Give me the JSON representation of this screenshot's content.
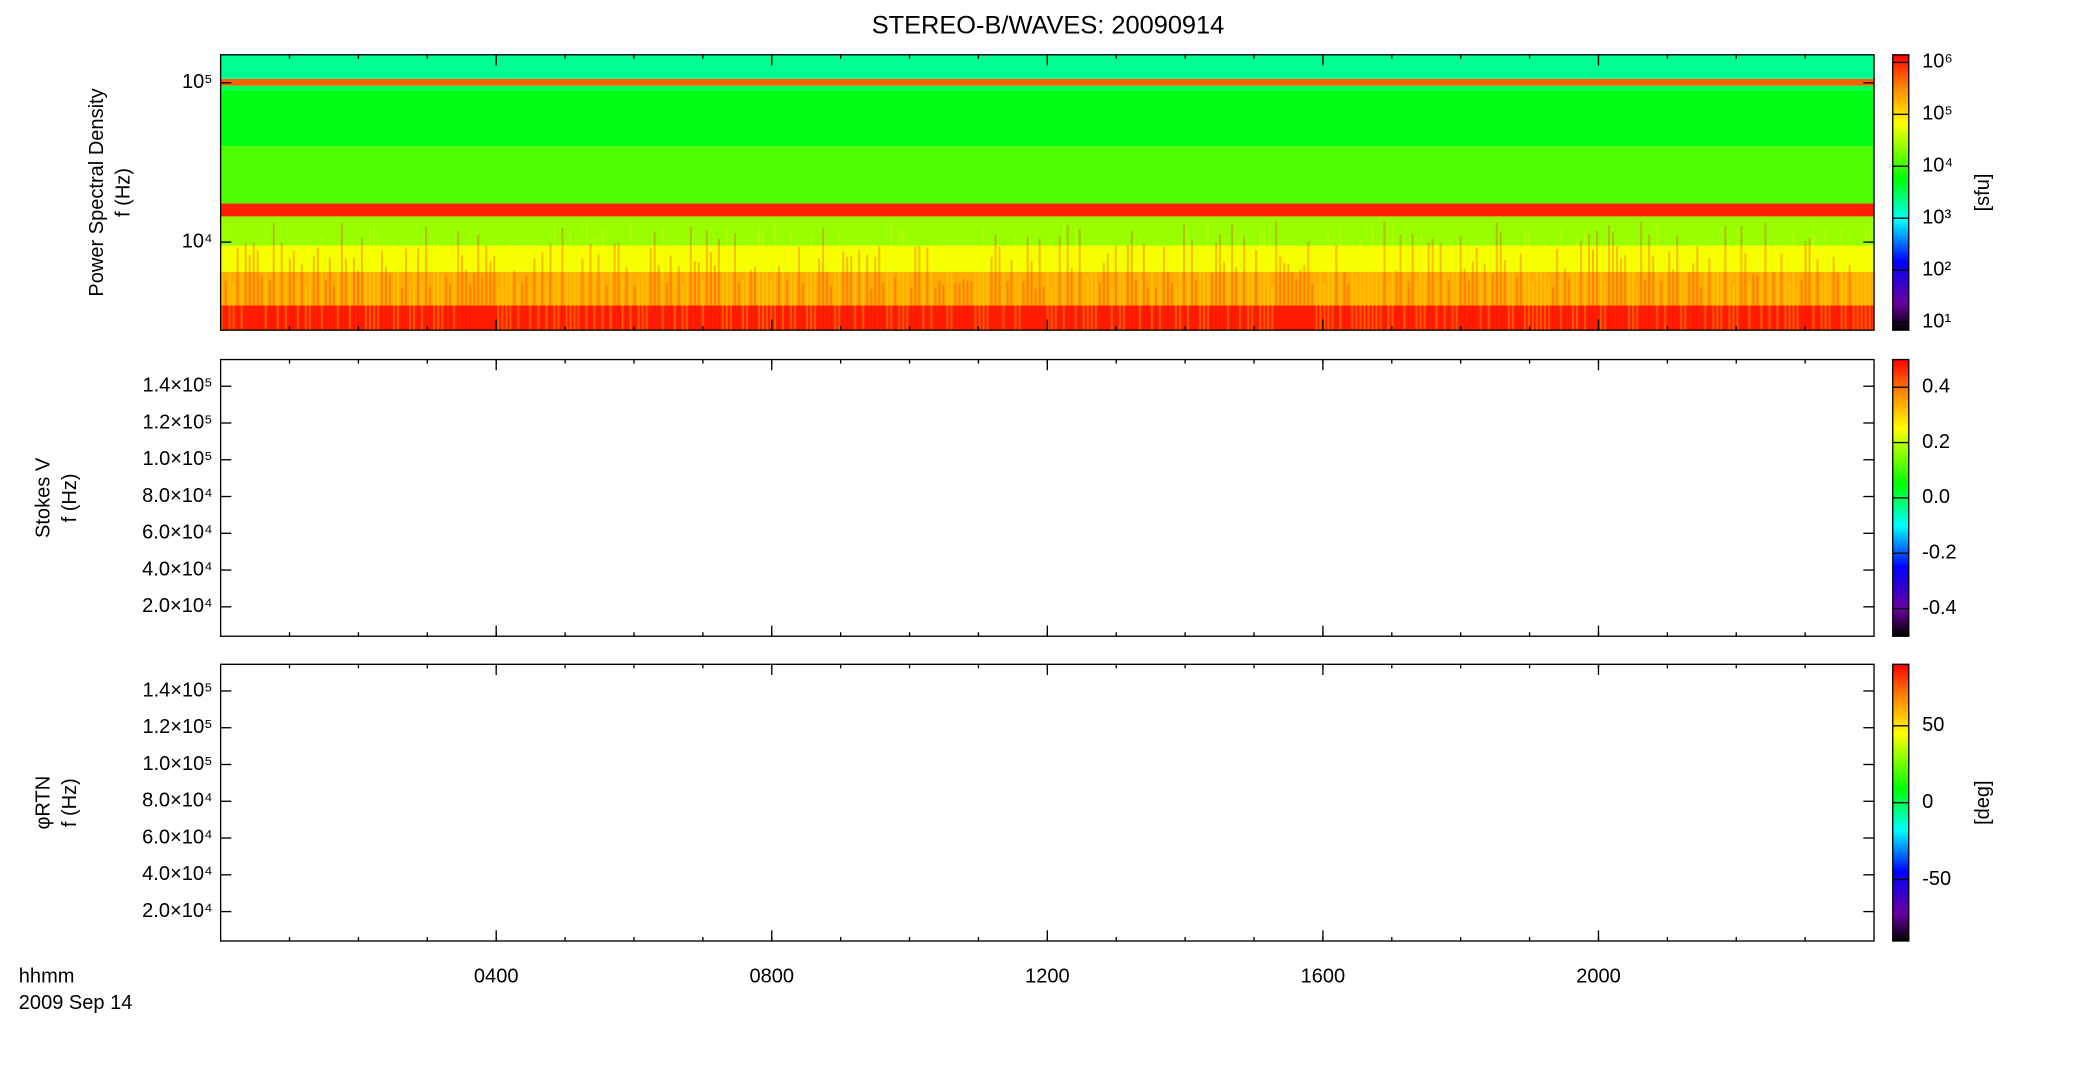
{
  "chart_data": [
    {
      "type": "spectrogram",
      "title": "STEREO-B/WAVES: 20090914",
      "ylabel": [
        "Power Spectral Density",
        "f (Hz)"
      ],
      "ylog": true,
      "ylim": [
        2800,
        150000
      ],
      "yticks": [
        {
          "value": 10000,
          "label": "10⁴"
        },
        {
          "value": 100000,
          "label": "10⁵"
        }
      ],
      "zlog": true,
      "zlim": [
        7,
        1400000
      ],
      "zlabel": "[sfu]",
      "zticks": [
        {
          "value": 10,
          "label": "10¹"
        },
        {
          "value": 100,
          "label": "10²"
        },
        {
          "value": 1000,
          "label": "10³"
        },
        {
          "value": 10000,
          "label": "10⁴"
        },
        {
          "value": 100000,
          "label": "10⁵"
        },
        {
          "value": 1000000,
          "label": "10⁶"
        }
      ],
      "colormap": "rainbow",
      "bands": [
        {
          "f": [
            2800,
            4000
          ],
          "value": 1000000
        },
        {
          "f": [
            4000,
            6500
          ],
          "value": 200000
        },
        {
          "f": [
            6500,
            9500
          ],
          "value": 60000
        },
        {
          "f": [
            9500,
            14500
          ],
          "value": 25000
        },
        {
          "f": [
            14500,
            17500
          ],
          "value": 1000000
        },
        {
          "f": [
            17500,
            40000
          ],
          "value": 12000
        },
        {
          "f": [
            40000,
            90000
          ],
          "value": 5000
        },
        {
          "f": [
            90000,
            96000
          ],
          "value": 3000
        },
        {
          "f": [
            96000,
            106000
          ],
          "value": 500000
        },
        {
          "f": [
            106000,
            150000
          ],
          "value": 2000
        }
      ]
    },
    {
      "type": "spectrogram",
      "ylabel": [
        "Stokes V",
        "f (Hz)"
      ],
      "ylog": false,
      "ylim": [
        4000,
        154500
      ],
      "yticks": [
        {
          "value": 20000,
          "label": "2.0×10⁴"
        },
        {
          "value": 40000,
          "label": "4.0×10⁴"
        },
        {
          "value": 60000,
          "label": "6.0×10⁴"
        },
        {
          "value": 80000,
          "label": "8.0×10⁴"
        },
        {
          "value": 100000,
          "label": "1.0×10⁵"
        },
        {
          "value": 120000,
          "label": "1.2×10⁵"
        },
        {
          "value": 140000,
          "label": "1.4×10⁵"
        }
      ],
      "zlog": false,
      "zlim": [
        -0.5,
        0.5
      ],
      "zticks": [
        -0.4,
        -0.2,
        {
          "value": 0,
          "label": "0.0"
        },
        0.2,
        0.4
      ],
      "colormap": "rainbow"
    },
    {
      "type": "spectrogram",
      "ylabel": [
        "φRTN",
        "f (Hz)"
      ],
      "ylog": false,
      "ylim": [
        4000,
        154500
      ],
      "yticks": [
        {
          "value": 20000,
          "label": "2.0×10⁴"
        },
        {
          "value": 40000,
          "label": "4.0×10⁴"
        },
        {
          "value": 60000,
          "label": "6.0×10⁴"
        },
        {
          "value": 80000,
          "label": "8.0×10⁴"
        },
        {
          "value": 100000,
          "label": "1.0×10⁵"
        },
        {
          "value": 120000,
          "label": "1.2×10⁵"
        },
        {
          "value": 140000,
          "label": "1.4×10⁵"
        }
      ],
      "zlog": false,
      "zlim": [
        -90,
        90
      ],
      "zlabel": "[deg]",
      "zticks": [
        -50,
        0,
        50
      ],
      "colormap": "rainbow",
      "xlabel": "hhmm",
      "date": "2009 Sep 14",
      "xlim": [
        0,
        24
      ],
      "xticks": [
        {
          "value": 4,
          "label": "0400"
        },
        {
          "value": 8,
          "label": "0800"
        },
        {
          "value": 12,
          "label": "1200"
        },
        {
          "value": 16,
          "label": "1600"
        },
        {
          "value": 20,
          "label": "2000"
        }
      ]
    }
  ]
}
